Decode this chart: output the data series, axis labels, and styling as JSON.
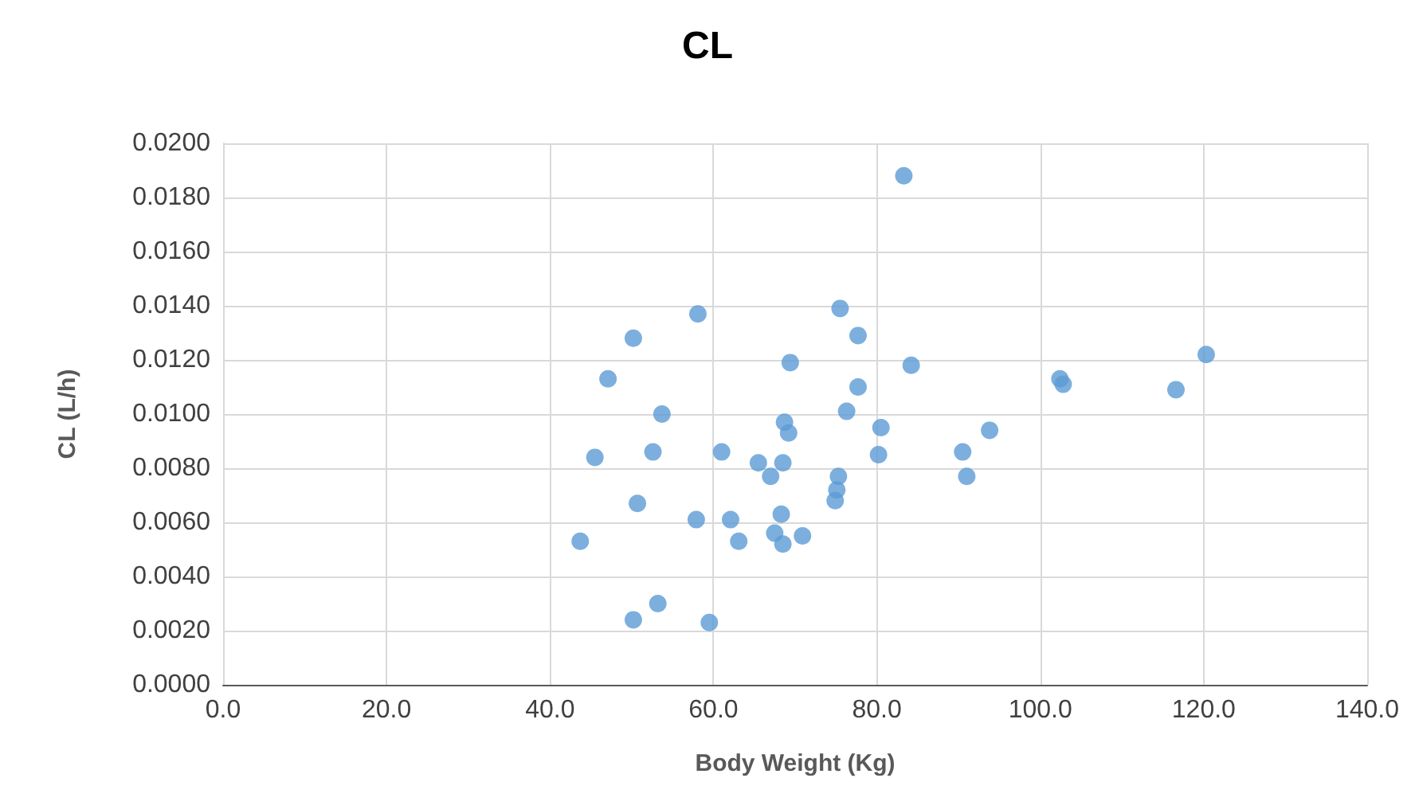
{
  "chart_data": {
    "type": "scatter",
    "title": "CL",
    "xlabel": "Body Weight (Kg)",
    "ylabel": "CL (L/h)",
    "marker": "circle",
    "grid": true,
    "xlim": [
      0,
      140
    ],
    "xticks": [
      {
        "value": 0,
        "label": "0.0"
      },
      {
        "value": 20,
        "label": "20.0"
      },
      {
        "value": 40,
        "label": "40.0"
      },
      {
        "value": 60,
        "label": "60.0"
      },
      {
        "value": 80,
        "label": "80.0"
      },
      {
        "value": 100,
        "label": "100.0"
      },
      {
        "value": 120,
        "label": "120.0"
      },
      {
        "value": 140,
        "label": "140.0"
      }
    ],
    "ylim": [
      0,
      0.02
    ],
    "yticks": [
      {
        "value": 0,
        "label": "0.0000"
      },
      {
        "value": 0.002,
        "label": "0.0020"
      },
      {
        "value": 0.004,
        "label": "0.0040"
      },
      {
        "value": 0.006,
        "label": "0.0060"
      },
      {
        "value": 0.008,
        "label": "0.0080"
      },
      {
        "value": 0.01,
        "label": "0.0100"
      },
      {
        "value": 0.012,
        "label": "0.0120"
      },
      {
        "value": 0.014,
        "label": "0.0140"
      },
      {
        "value": 0.016,
        "label": "0.0160"
      },
      {
        "value": 0.018,
        "label": "0.0180"
      },
      {
        "value": 0.02,
        "label": "0.0200"
      }
    ],
    "series": [
      {
        "color": "#5b9bd5",
        "x": [
          83.3,
          58.1,
          75.5,
          50.2,
          77.7,
          47.1,
          69.4,
          84.2,
          77.7,
          53.7,
          76.3,
          68.7,
          69.2,
          80.5,
          45.5,
          52.6,
          61.0,
          65.5,
          68.5,
          67.0,
          80.2,
          75.3,
          75.1,
          74.9,
          50.7,
          68.3,
          57.9,
          62.1,
          67.5,
          68.5,
          63.1,
          70.9,
          43.7,
          53.2,
          50.2,
          59.5,
          90.5,
          91.0,
          93.8,
          102.4,
          102.8,
          116.6,
          120.3
        ],
        "values": [
          0.0188,
          0.0137,
          0.0139,
          0.0128,
          0.0129,
          0.0113,
          0.0119,
          0.0118,
          0.011,
          0.01,
          0.0101,
          0.0097,
          0.0093,
          0.0095,
          0.0084,
          0.0086,
          0.0086,
          0.0082,
          0.0082,
          0.0077,
          0.0085,
          0.0077,
          0.0072,
          0.0068,
          0.0067,
          0.0063,
          0.0061,
          0.0061,
          0.0056,
          0.0052,
          0.0053,
          0.0055,
          0.0053,
          0.003,
          0.0024,
          0.0023,
          0.0086,
          0.0077,
          0.0094,
          0.0113,
          0.0111,
          0.0109,
          0.0122
        ]
      }
    ]
  }
}
